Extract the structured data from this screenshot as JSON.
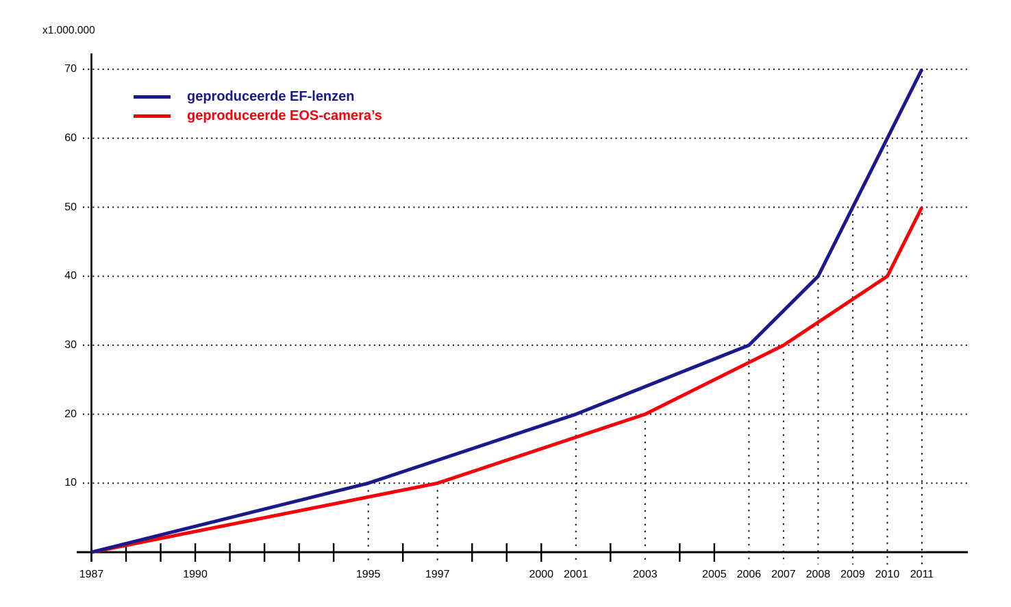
{
  "chart_data": {
    "type": "line",
    "title": "",
    "unit_label": "x1.000.000",
    "xlabel": "",
    "ylabel": "x1.000.000",
    "x_range": [
      1987,
      2011
    ],
    "ylim": [
      0,
      70
    ],
    "grid": "dotted",
    "legend_position": "top-left",
    "y_gridline_values": [
      10,
      20,
      30,
      40,
      50,
      60,
      70
    ],
    "y_tick_labels": [
      "10",
      "20",
      "30",
      "40",
      "50",
      "60",
      "70"
    ],
    "x_labeled_years": [
      "1987",
      "1990",
      "1995",
      "1997",
      "2000",
      "2001",
      "2003",
      "2005",
      "2006",
      "2007",
      "2008",
      "2009",
      "2010",
      "2011"
    ],
    "x_solid_tick_years": [
      1987,
      1988,
      1989,
      1990,
      1991,
      1992,
      1993,
      1994,
      1996,
      1998,
      1999,
      2000,
      2002,
      2004,
      2005
    ],
    "milestone_dotted_verticals": [
      {
        "year": 1995,
        "value": 10
      },
      {
        "year": 1997,
        "value": 10
      },
      {
        "year": 2001,
        "value": 20
      },
      {
        "year": 2003,
        "value": 20
      },
      {
        "year": 2006,
        "value": 30
      },
      {
        "year": 2007,
        "value": 30
      },
      {
        "year": 2008,
        "value": 40
      },
      {
        "year": 2009,
        "value": 50
      },
      {
        "year": 2010,
        "value": 60
      },
      {
        "year": 2011,
        "value": 70
      }
    ],
    "series": [
      {
        "name": "geproduceerde EF-lenzen",
        "color": "#1A1A8C",
        "points": [
          [
            1987,
            0
          ],
          [
            1995,
            10
          ],
          [
            2001,
            20
          ],
          [
            2006,
            30
          ],
          [
            2008,
            40
          ],
          [
            2009,
            50
          ],
          [
            2010,
            60
          ],
          [
            2011,
            70
          ]
        ]
      },
      {
        "name": "geproduceerde EOS-camera’s",
        "color": "#F80008",
        "points": [
          [
            1987,
            0
          ],
          [
            1997,
            10
          ],
          [
            2003,
            20
          ],
          [
            2007,
            30
          ],
          [
            2010,
            40
          ],
          [
            2011,
            50
          ]
        ]
      }
    ],
    "axis_color": "#000000",
    "gridline_color": "#111111"
  }
}
